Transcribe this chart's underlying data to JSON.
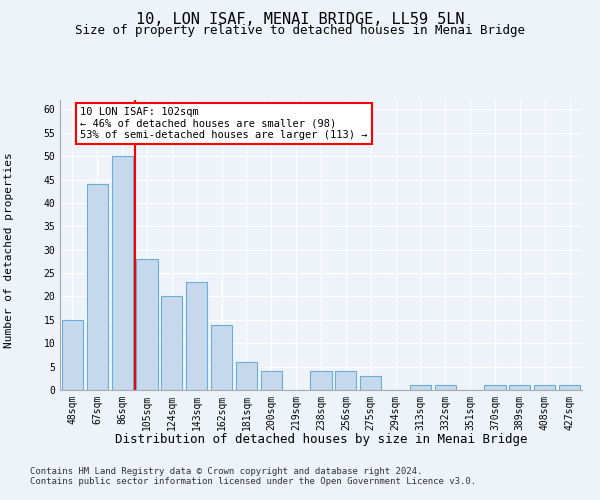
{
  "title": "10, LON ISAF, MENAI BRIDGE, LL59 5LN",
  "subtitle": "Size of property relative to detached houses in Menai Bridge",
  "xlabel": "Distribution of detached houses by size in Menai Bridge",
  "ylabel": "Number of detached properties",
  "categories": [
    "48sqm",
    "67sqm",
    "86sqm",
    "105sqm",
    "124sqm",
    "143sqm",
    "162sqm",
    "181sqm",
    "200sqm",
    "219sqm",
    "238sqm",
    "256sqm",
    "275sqm",
    "294sqm",
    "313sqm",
    "332sqm",
    "351sqm",
    "370sqm",
    "389sqm",
    "408sqm",
    "427sqm"
  ],
  "values": [
    15,
    44,
    50,
    28,
    20,
    23,
    14,
    6,
    4,
    0,
    4,
    4,
    3,
    0,
    1,
    1,
    0,
    1,
    1,
    1,
    1
  ],
  "bar_color": "#c5d8ec",
  "bar_edge_color": "#6aaed6",
  "vline_x": 2.5,
  "vline_color": "red",
  "annotation_box_text": "10 LON ISAF: 102sqm\n← 46% of detached houses are smaller (98)\n53% of semi-detached houses are larger (113) →",
  "ylim": [
    0,
    62
  ],
  "yticks": [
    0,
    5,
    10,
    15,
    20,
    25,
    30,
    35,
    40,
    45,
    50,
    55,
    60
  ],
  "footer1": "Contains HM Land Registry data © Crown copyright and database right 2024.",
  "footer2": "Contains public sector information licensed under the Open Government Licence v3.0.",
  "background_color": "#eef2f9",
  "grid_color": "#ffffff",
  "title_fontsize": 11,
  "subtitle_fontsize": 9,
  "xlabel_fontsize": 9,
  "ylabel_fontsize": 8,
  "tick_fontsize": 7,
  "footer_fontsize": 6.5,
  "annot_fontsize": 7.5
}
